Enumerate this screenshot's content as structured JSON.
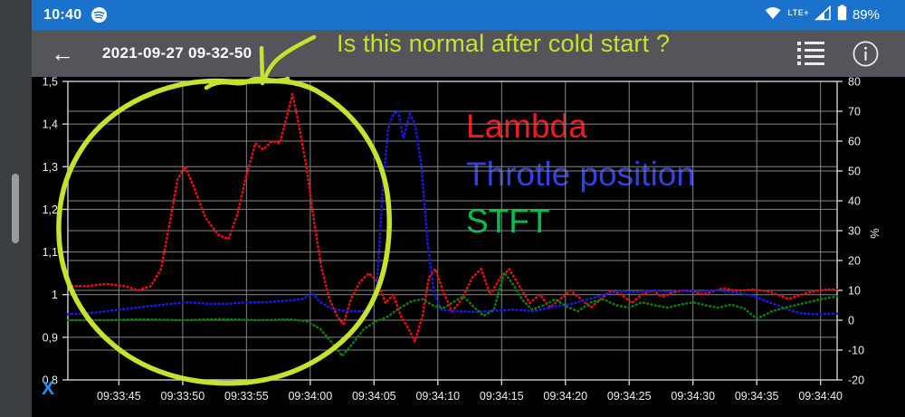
{
  "status_bar": {
    "time": "10:40",
    "network_label": "LTE+",
    "battery_percent": "89%",
    "icons": [
      "spotify-icon",
      "wifi-icon",
      "mobile-signal-icon",
      "battery-icon"
    ]
  },
  "header": {
    "title": "2021-09-27 09-32-50",
    "icons": [
      "back-arrow-icon",
      "record-list-icon",
      "info-icon"
    ]
  },
  "annotation": {
    "question": "Is this normal after cold start ?",
    "color": "#c6e22f"
  },
  "chart_ui": {
    "x_axis_indicator": "X",
    "x_axis_indicator_color": "#2b8cf0"
  },
  "colors": {
    "status_bar_bg": "#1b72ca",
    "app_bar_bg": "#54555a",
    "chart_bg": "#000000",
    "grid": "#858585",
    "axis": "#cfcfcf",
    "tick_text": "#ededed"
  },
  "chart_data": {
    "type": "line",
    "title": "",
    "grid": true,
    "x_axis": {
      "ticks": [
        {
          "label": "09:33:45",
          "s": 4
        },
        {
          "label": "09:33:50",
          "s": 9
        },
        {
          "label": "09:33:55",
          "s": 14
        },
        {
          "label": "09:34:00",
          "s": 19
        },
        {
          "label": "09:34:05",
          "s": 24
        },
        {
          "label": "09:34:10",
          "s": 29
        },
        {
          "label": "09:34:15",
          "s": 34
        },
        {
          "label": "09:34:20",
          "s": 39
        },
        {
          "label": "09:34:25",
          "s": 44
        },
        {
          "label": "09:34:30",
          "s": 49
        },
        {
          "label": "09:34:35",
          "s": 54
        },
        {
          "label": "09:34:40",
          "s": 59
        }
      ],
      "span_seconds": 60.3
    },
    "left_axis": {
      "min": 0.8,
      "max": 1.5,
      "ticks": [
        {
          "v": 1.5,
          "label": "1,5"
        },
        {
          "v": 1.4,
          "label": "1,4"
        },
        {
          "v": 1.3,
          "label": "1,3"
        },
        {
          "v": 1.2,
          "label": "1,2"
        },
        {
          "v": 1.1,
          "label": "1,1"
        },
        {
          "v": 1.0,
          "label": "1"
        },
        {
          "v": 0.9,
          "label": "0,9"
        },
        {
          "v": 0.8,
          "label": "0,8"
        }
      ]
    },
    "right_axis": {
      "min": -20,
      "max": 80,
      "unit": "%",
      "ticks": [
        {
          "v": 80,
          "label": "80"
        },
        {
          "v": 70,
          "label": "70"
        },
        {
          "v": 60,
          "label": "60"
        },
        {
          "v": 50,
          "label": "50"
        },
        {
          "v": 40,
          "label": "40"
        },
        {
          "v": 30,
          "label": "30"
        },
        {
          "v": 20,
          "label": "20"
        },
        {
          "v": 10,
          "label": "10"
        },
        {
          "v": 0,
          "label": "0"
        },
        {
          "v": -10,
          "label": "-10"
        },
        {
          "v": -20,
          "label": "-20"
        }
      ]
    },
    "legend": [
      {
        "label": "Lambda",
        "color": "#ee1c1c"
      },
      {
        "label": "Throtle position",
        "color": "#3240dd"
      },
      {
        "label": "STFT",
        "color": "#00c24a"
      }
    ],
    "series": [
      {
        "name": "Lambda",
        "axis": "left",
        "color": "#e01111",
        "points": [
          [
            0,
            1.02
          ],
          [
            1.5,
            1.02
          ],
          [
            3,
            1.025
          ],
          [
            4.5,
            1.02
          ],
          [
            5.5,
            1.01
          ],
          [
            6.5,
            1.02
          ],
          [
            7.3,
            1.06
          ],
          [
            8,
            1.17
          ],
          [
            8.6,
            1.27
          ],
          [
            9.2,
            1.3
          ],
          [
            9.9,
            1.25
          ],
          [
            10.8,
            1.18
          ],
          [
            11.8,
            1.14
          ],
          [
            12.6,
            1.13
          ],
          [
            13.3,
            1.19
          ],
          [
            14,
            1.28
          ],
          [
            14.7,
            1.355
          ],
          [
            15.3,
            1.34
          ],
          [
            16,
            1.36
          ],
          [
            16.6,
            1.355
          ],
          [
            17.1,
            1.41
          ],
          [
            17.6,
            1.47
          ],
          [
            18.1,
            1.4
          ],
          [
            18.7,
            1.3
          ],
          [
            19.3,
            1.17
          ],
          [
            19.9,
            1.06
          ],
          [
            20.5,
            0.99
          ],
          [
            21.1,
            0.95
          ],
          [
            21.6,
            0.93
          ],
          [
            22.2,
            0.99
          ],
          [
            22.9,
            1.03
          ],
          [
            23.6,
            1.05
          ],
          [
            24.3,
            1.03
          ],
          [
            24.9,
            0.98
          ],
          [
            25.5,
            1.0
          ],
          [
            26.1,
            0.95
          ],
          [
            26.7,
            0.92
          ],
          [
            27.2,
            0.89
          ],
          [
            27.8,
            0.95
          ],
          [
            28.3,
            1.04
          ],
          [
            28.8,
            1.06
          ],
          [
            29.4,
            1.01
          ],
          [
            30.1,
            0.96
          ],
          [
            30.9,
            0.99
          ],
          [
            31.7,
            1.04
          ],
          [
            32.4,
            1.06
          ],
          [
            33.1,
            1.0
          ],
          [
            33.9,
            1.04
          ],
          [
            34.6,
            1.06
          ],
          [
            35.4,
            1.02
          ],
          [
            36.2,
            0.98
          ],
          [
            37,
            1.0
          ],
          [
            37.8,
            0.97
          ],
          [
            38.6,
            0.99
          ],
          [
            39.4,
            1.01
          ],
          [
            40.2,
            0.99
          ],
          [
            41,
            0.97
          ],
          [
            41.8,
            0.99
          ],
          [
            42.6,
            1.01
          ],
          [
            43.4,
            1.0
          ],
          [
            44.2,
            0.98
          ],
          [
            45,
            1.0
          ],
          [
            45.8,
            1.01
          ],
          [
            46.6,
            0.995
          ],
          [
            47.4,
            1.005
          ],
          [
            48.2,
            1.01
          ],
          [
            49,
            1.008
          ],
          [
            49.8,
            1.0
          ],
          [
            50.6,
            1.008
          ],
          [
            51.4,
            1.015
          ],
          [
            52.2,
            1.01
          ],
          [
            53,
            1.01
          ],
          [
            53.8,
            1.012
          ],
          [
            55,
            1.007
          ],
          [
            56.5,
            0.99
          ],
          [
            57.5,
            1.0
          ],
          [
            58.5,
            1.008
          ],
          [
            59.5,
            1.012
          ],
          [
            60.3,
            1.012
          ]
        ]
      },
      {
        "name": "Throtle position",
        "axis": "right",
        "color": "#1a1ae0",
        "points": [
          [
            0,
            2
          ],
          [
            2,
            2.5
          ],
          [
            4,
            3.5
          ],
          [
            6,
            4.5
          ],
          [
            8,
            5.5
          ],
          [
            9.5,
            6
          ],
          [
            11,
            5.5
          ],
          [
            12.5,
            5.5
          ],
          [
            14,
            6
          ],
          [
            15.5,
            6
          ],
          [
            17,
            6.5
          ],
          [
            18.3,
            7
          ],
          [
            19.2,
            8.8
          ],
          [
            19.8,
            6
          ],
          [
            20.6,
            4
          ],
          [
            21.5,
            3.2
          ],
          [
            22.5,
            3
          ],
          [
            23.5,
            3
          ],
          [
            24.2,
            10
          ],
          [
            24.7,
            45
          ],
          [
            25.1,
            64
          ],
          [
            25.5,
            69
          ],
          [
            25.9,
            70
          ],
          [
            26.3,
            61
          ],
          [
            26.8,
            69
          ],
          [
            27.2,
            66
          ],
          [
            27.7,
            52
          ],
          [
            28.2,
            26
          ],
          [
            28.7,
            9
          ],
          [
            29.3,
            3.5
          ],
          [
            30.5,
            3
          ],
          [
            32,
            2.8
          ],
          [
            33.5,
            3.2
          ],
          [
            35,
            3.5
          ],
          [
            36.5,
            3
          ],
          [
            38,
            4.5
          ],
          [
            39.5,
            5.5
          ],
          [
            40.8,
            7
          ],
          [
            42,
            8.5
          ],
          [
            43.2,
            9.8
          ],
          [
            44.5,
            9.4
          ],
          [
            45.8,
            10
          ],
          [
            47,
            9.5
          ],
          [
            48.2,
            10
          ],
          [
            49.5,
            9.6
          ],
          [
            50.8,
            10
          ],
          [
            52,
            9.5
          ],
          [
            53.5,
            8.5
          ],
          [
            55,
            6
          ],
          [
            56.5,
            3.5
          ],
          [
            57.5,
            2.3
          ],
          [
            58.5,
            2
          ],
          [
            60.3,
            2.2
          ]
        ]
      },
      {
        "name": "STFT",
        "axis": "right",
        "color": "#0e7a10",
        "points": [
          [
            0,
            0
          ],
          [
            3,
            0
          ],
          [
            6,
            0.3
          ],
          [
            9,
            0
          ],
          [
            12,
            0.4
          ],
          [
            15,
            0
          ],
          [
            17.5,
            0.3
          ],
          [
            18.8,
            -0.5
          ],
          [
            19.8,
            -3
          ],
          [
            20.8,
            -8
          ],
          [
            21.5,
            -12
          ],
          [
            22.3,
            -8
          ],
          [
            23.2,
            -3
          ],
          [
            24.1,
            -0.5
          ],
          [
            25,
            1
          ],
          [
            26,
            4
          ],
          [
            27,
            6.5
          ],
          [
            27.8,
            7
          ],
          [
            28.6,
            5
          ],
          [
            29.4,
            4
          ],
          [
            30.2,
            6
          ],
          [
            31,
            8
          ],
          [
            31.8,
            4.5
          ],
          [
            32.6,
            1.5
          ],
          [
            33.4,
            3.5
          ],
          [
            34.2,
            16
          ],
          [
            34.9,
            12
          ],
          [
            35.6,
            7
          ],
          [
            36.4,
            3.5
          ],
          [
            37.3,
            5
          ],
          [
            38.2,
            7
          ],
          [
            39.1,
            4.5
          ],
          [
            40,
            3
          ],
          [
            41,
            6
          ],
          [
            42,
            7
          ],
          [
            43,
            5
          ],
          [
            44,
            4.2
          ],
          [
            45,
            6
          ],
          [
            46,
            5
          ],
          [
            47,
            4.2
          ],
          [
            48,
            5.2
          ],
          [
            49,
            6
          ],
          [
            50,
            5
          ],
          [
            51,
            4.2
          ],
          [
            52,
            5.2
          ],
          [
            53,
            4
          ],
          [
            54,
            0.5
          ],
          [
            55.2,
            3
          ],
          [
            56.5,
            4.5
          ],
          [
            58,
            6
          ],
          [
            59,
            7
          ],
          [
            60.3,
            8
          ]
        ]
      }
    ]
  }
}
